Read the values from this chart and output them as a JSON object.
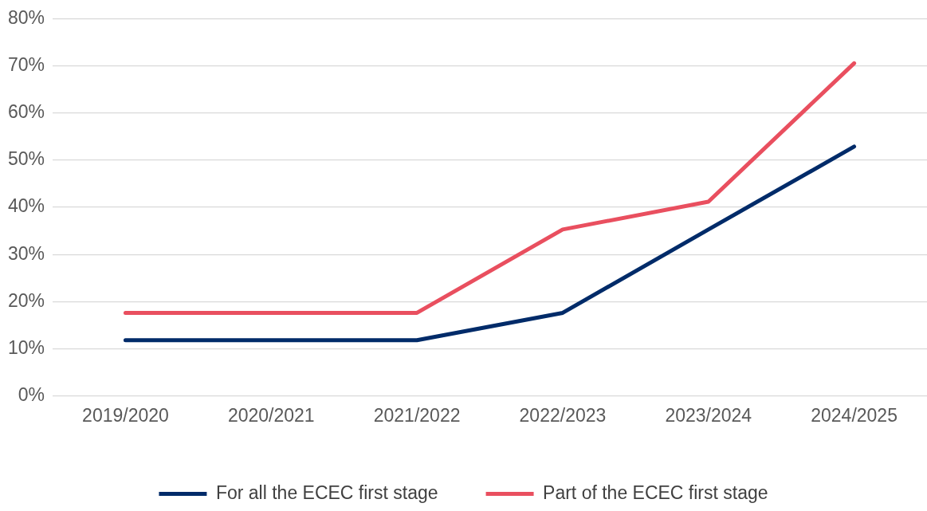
{
  "chart_data": {
    "type": "line",
    "categories": [
      "2019/2020",
      "2020/2021",
      "2021/2022",
      "2022/2023",
      "2023/2024",
      "2024/2025"
    ],
    "series": [
      {
        "name": "For all the ECEC first stage",
        "color": "#002b69",
        "values": [
          11.8,
          11.8,
          11.8,
          17.6,
          35.3,
          52.9
        ]
      },
      {
        "name": "Part of the ECEC first stage",
        "color": "#e94f5f",
        "values": [
          17.6,
          17.6,
          17.6,
          35.3,
          41.2,
          70.6
        ]
      }
    ],
    "ylim": [
      0,
      80
    ],
    "yticks": [
      {
        "value": 0,
        "label": "0%"
      },
      {
        "value": 10,
        "label": "10%"
      },
      {
        "value": 20,
        "label": "20%"
      },
      {
        "value": 30,
        "label": "30%"
      },
      {
        "value": 40,
        "label": "40%"
      },
      {
        "value": 50,
        "label": "50%"
      },
      {
        "value": 60,
        "label": "60%"
      },
      {
        "value": 70,
        "label": "70%"
      },
      {
        "value": 80,
        "label": "80%"
      }
    ],
    "grid": "y",
    "legend": "bottom",
    "marker": "none",
    "line_style": "solid"
  }
}
